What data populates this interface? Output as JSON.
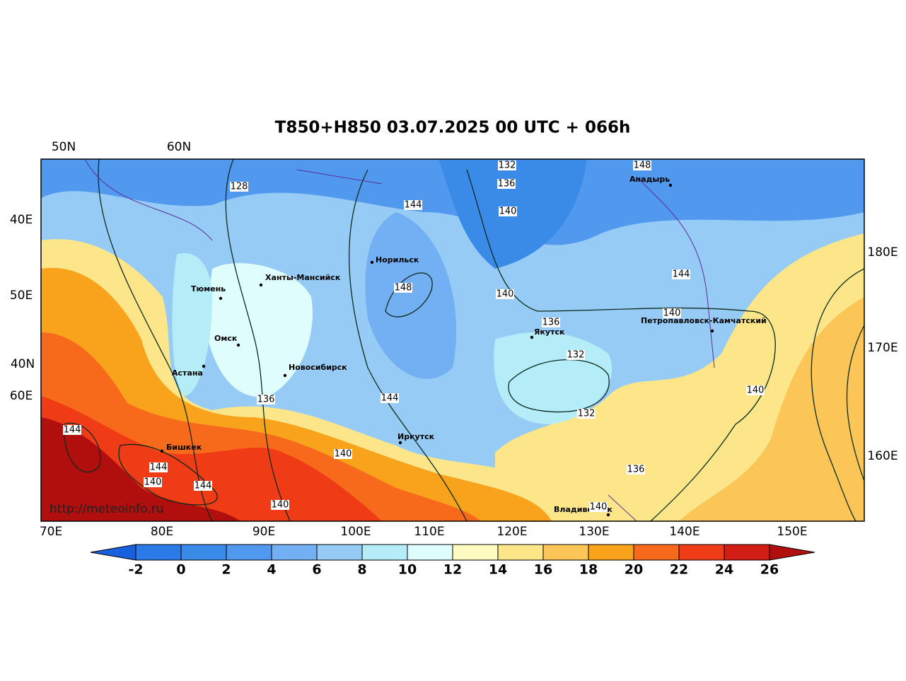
{
  "title": "T850+H850 03.07.2025 00 UTC + 066h",
  "watermark": "http://meteoinfo.ru",
  "graticule_labels": {
    "top": [
      "50N",
      "60N"
    ],
    "left": [
      "40E",
      "50E",
      "40N",
      "60E"
    ],
    "right": [
      "180E",
      "170E",
      "160E"
    ],
    "bottom": [
      "70E",
      "80E",
      "90E",
      "100E",
      "110E",
      "120E",
      "130E",
      "140E",
      "150E"
    ]
  },
  "cities": [
    "Норильск",
    "Ханты-Мансийск",
    "Тюмень",
    "Омск",
    "Астана",
    "Новосибирск",
    "Бишкек",
    "Иркутск",
    "Якутск",
    "Анадырь",
    "Петропавловск-Камчатский",
    "Владивосток"
  ],
  "contour_labels": [
    128,
    132,
    136,
    140,
    148,
    144,
    148,
    140,
    144,
    140,
    136,
    132,
    144,
    136,
    140,
    132,
    140,
    136,
    144,
    144,
    140,
    144,
    140,
    140
  ],
  "colorbar": {
    "ticks": [
      -2,
      0,
      2,
      4,
      6,
      8,
      10,
      12,
      14,
      16,
      18,
      20,
      22,
      24,
      26
    ],
    "colors": [
      "#2a7be8",
      "#3a8ae8",
      "#5199ee",
      "#72b0f3",
      "#96cbf6",
      "#b4ecf8",
      "#e0fdfd",
      "#fffac0",
      "#fde68a",
      "#fbc657",
      "#f9a21c",
      "#f76a1c",
      "#f03c16",
      "#d21d14"
    ],
    "under_color": "#1860dd",
    "over_color": "#b10e0e"
  }
}
